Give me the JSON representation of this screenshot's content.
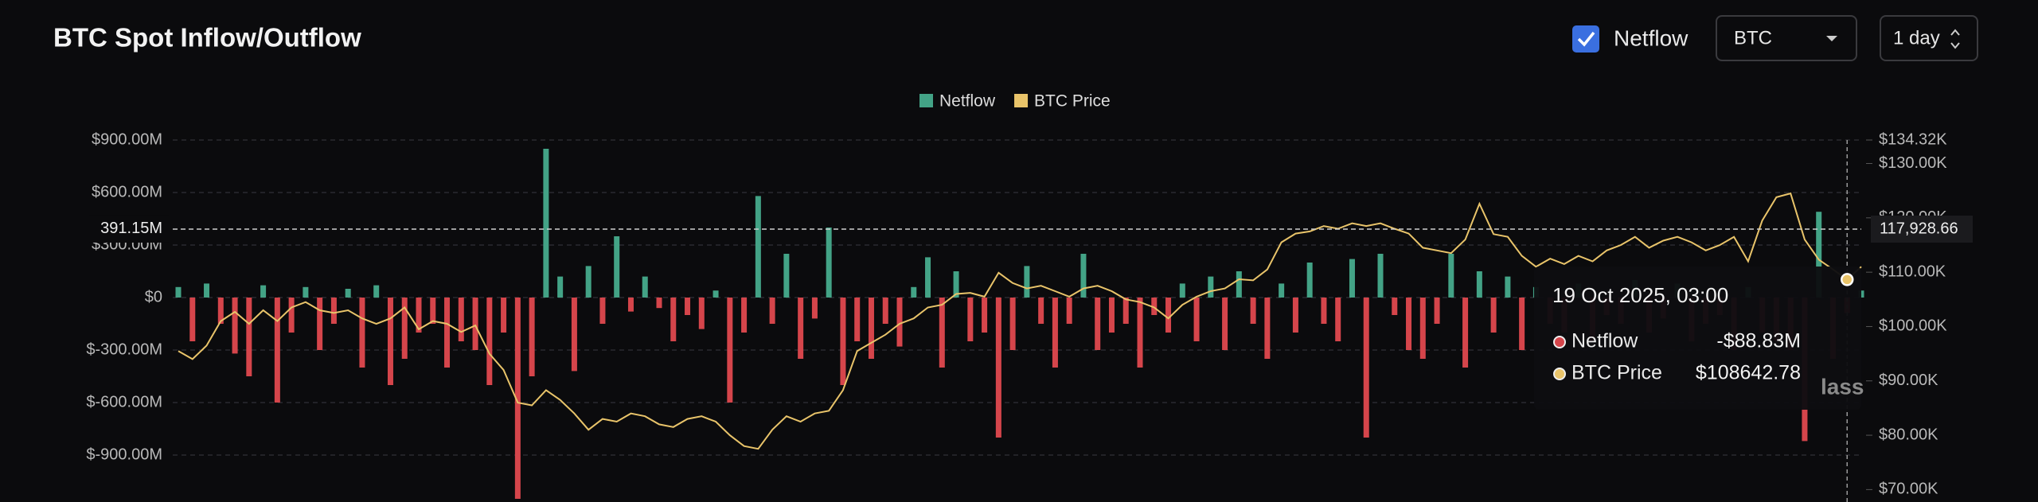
{
  "chart_data": {
    "type": "bar",
    "title": "BTC Spot Inflow/Outflow",
    "controls": {
      "checkbox_label": "Netflow",
      "checked": true,
      "asset": "BTC",
      "interval": "1 day"
    },
    "series": [
      {
        "name": "Netflow",
        "type": "bar",
        "color": "#43a386",
        "negative_color": "#d5454b",
        "values": [
          60,
          -250,
          80,
          -150,
          -320,
          -450,
          70,
          -600,
          -200,
          60,
          -300,
          -150,
          50,
          -400,
          70,
          -500,
          -350,
          -200,
          -150,
          -400,
          -250,
          -300,
          -500,
          -200,
          -1150,
          -450,
          850,
          120,
          -420,
          180,
          -150,
          350,
          -80,
          120,
          -60,
          -250,
          -100,
          -180,
          40,
          -600,
          -200,
          580,
          -150,
          250,
          -350,
          -120,
          400,
          -500,
          -250,
          -350,
          -150,
          -280,
          60,
          230,
          -400,
          150,
          -250,
          -200,
          -800,
          -300,
          180,
          -150,
          -400,
          -150,
          250,
          -300,
          -200,
          -150,
          -400,
          -100,
          -200,
          80,
          -250,
          120,
          -300,
          150,
          -150,
          -350,
          80,
          -200,
          200,
          -150,
          -250,
          220,
          -800,
          250,
          -100,
          -300,
          -350,
          -150,
          250,
          -400,
          150,
          -200,
          120,
          -300,
          60,
          -150,
          -200,
          80,
          -250,
          -100,
          -150,
          100,
          -200,
          -120,
          80,
          -250,
          -150,
          -100,
          -300,
          60,
          -200,
          -250,
          -300,
          -820,
          490,
          -350,
          -88.83,
          40
        ]
      },
      {
        "name": "BTC Price",
        "type": "line",
        "axis": "y2",
        "color": "#e9c46a",
        "values": [
          95500,
          94000,
          96500,
          101000,
          102700,
          100500,
          103000,
          101000,
          103500,
          104500,
          103000,
          102500,
          103000,
          101500,
          100500,
          101500,
          103500,
          99500,
          101000,
          100500,
          99000,
          100200,
          95000,
          92000,
          86000,
          85500,
          88300,
          86500,
          84000,
          81000,
          83000,
          82500,
          84000,
          83500,
          82000,
          81500,
          83000,
          83500,
          82500,
          80000,
          78000,
          77500,
          81000,
          83500,
          82500,
          84000,
          84500,
          88300,
          95500,
          97000,
          98500,
          100500,
          101500,
          103500,
          104000,
          106000,
          106200,
          105500,
          109900,
          108000,
          107000,
          107500,
          106500,
          105500,
          107000,
          107500,
          106500,
          105000,
          104500,
          103500,
          101500,
          104000,
          105500,
          106500,
          107000,
          108700,
          108500,
          110500,
          115500,
          117100,
          117500,
          118500,
          118000,
          119000,
          118500,
          119000,
          118000,
          117100,
          114500,
          114000,
          113500,
          116000,
          122600,
          117000,
          116500,
          113000,
          111000,
          112500,
          111500,
          113000,
          112000,
          114000,
          115000,
          116500,
          114500,
          115800,
          116500,
          115500,
          114000,
          115000,
          116500,
          112000,
          119500,
          123800,
          124500,
          116000,
          112300,
          110500,
          108642.78,
          111000
        ]
      }
    ],
    "ylim": [
      -1150,
      900
    ],
    "yticks": [
      {
        "value": 900,
        "label": "$900.00M"
      },
      {
        "value": 600,
        "label": "$600.00M"
      },
      {
        "value": 300,
        "label": "$300.00M"
      },
      {
        "value": 0,
        "label": "$0"
      },
      {
        "value": -300,
        "label": "$-300.00M"
      },
      {
        "value": -600,
        "label": "$-600.00M"
      },
      {
        "value": -900,
        "label": "$-900.00M"
      }
    ],
    "y2lim": [
      68300,
      134320
    ],
    "y2ticks": [
      {
        "value": 134320,
        "label": "$134.32K"
      },
      {
        "value": 130000,
        "label": "$130.00K"
      },
      {
        "value": 120000,
        "label": "$120.00K"
      },
      {
        "value": 110000,
        "label": "$110.00K"
      },
      {
        "value": 100000,
        "label": "$100.00K"
      },
      {
        "value": 90000,
        "label": "$90.00K"
      },
      {
        "value": 80000,
        "label": "$80.00K"
      },
      {
        "value": 70000,
        "label": "$70.00K"
      }
    ],
    "grid": true,
    "legend": "top",
    "crosshair": {
      "y": {
        "value": 391.15,
        "label": "391.15M"
      },
      "y2": {
        "value": 117928.66,
        "label": "117,928.66"
      }
    },
    "tooltip": {
      "title": "19 Oct 2025, 03:00",
      "rows": [
        {
          "name": "Netflow",
          "label": "-$88.83M"
        },
        {
          "name": "BTC Price",
          "label": "$108642.78"
        }
      ]
    },
    "watermark": "lass"
  }
}
